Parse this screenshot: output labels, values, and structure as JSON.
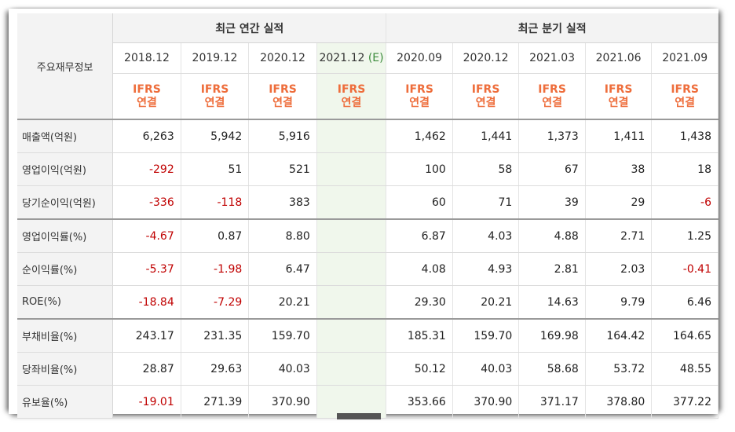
{
  "header": {
    "corner_label": "주요재무정보",
    "annual_group": "최근 연간 실적",
    "quarterly_group": "최근 분기 실적"
  },
  "periods": [
    {
      "label": "2018.12",
      "estimate": false
    },
    {
      "label": "2019.12",
      "estimate": false
    },
    {
      "label": "2020.12",
      "estimate": false
    },
    {
      "label": "2021.12",
      "estimate": true,
      "estimate_mark": "(E)"
    },
    {
      "label": "2020.09",
      "estimate": false
    },
    {
      "label": "2020.12",
      "estimate": false
    },
    {
      "label": "2021.03",
      "estimate": false
    },
    {
      "label": "2021.06",
      "estimate": false
    },
    {
      "label": "2021.09",
      "estimate": false
    }
  ],
  "standard": {
    "line1": "IFRS",
    "line2": "연결"
  },
  "rows": [
    {
      "label": "매출액(억원)",
      "values": [
        "6,263",
        "5,942",
        "5,916",
        "",
        "1,462",
        "1,441",
        "1,373",
        "1,411",
        "1,438"
      ]
    },
    {
      "label": "영업이익(억원)",
      "values": [
        "-292",
        "51",
        "521",
        "",
        "100",
        "58",
        "67",
        "38",
        "18"
      ]
    },
    {
      "label": "당기순이익(억원)",
      "values": [
        "-336",
        "-118",
        "383",
        "",
        "60",
        "71",
        "39",
        "29",
        "-6"
      ]
    },
    {
      "label": "영업이익률(%)",
      "values": [
        "-4.67",
        "0.87",
        "8.80",
        "",
        "6.87",
        "4.03",
        "4.88",
        "2.71",
        "1.25"
      ]
    },
    {
      "label": "순이익률(%)",
      "values": [
        "-5.37",
        "-1.98",
        "6.47",
        "",
        "4.08",
        "4.93",
        "2.81",
        "2.03",
        "-0.41"
      ]
    },
    {
      "label": "ROE(%)",
      "values": [
        "-18.84",
        "-7.29",
        "20.21",
        "",
        "29.30",
        "20.21",
        "14.63",
        "9.79",
        "6.46"
      ]
    },
    {
      "label": "부채비율(%)",
      "values": [
        "243.17",
        "231.35",
        "159.70",
        "",
        "185.31",
        "159.70",
        "169.98",
        "164.42",
        "164.65"
      ]
    },
    {
      "label": "당좌비율(%)",
      "values": [
        "28.87",
        "29.63",
        "40.03",
        "",
        "50.12",
        "40.03",
        "58.68",
        "53.72",
        "48.55"
      ]
    },
    {
      "label": "유보율(%)",
      "values": [
        "-19.01",
        "271.39",
        "370.90",
        "",
        "353.66",
        "370.90",
        "371.17",
        "378.80",
        "377.22"
      ]
    }
  ],
  "colors": {
    "negative": "#c00000",
    "ifrs": "#ee6d3b",
    "estimate_bg": "#f0f7ec"
  }
}
